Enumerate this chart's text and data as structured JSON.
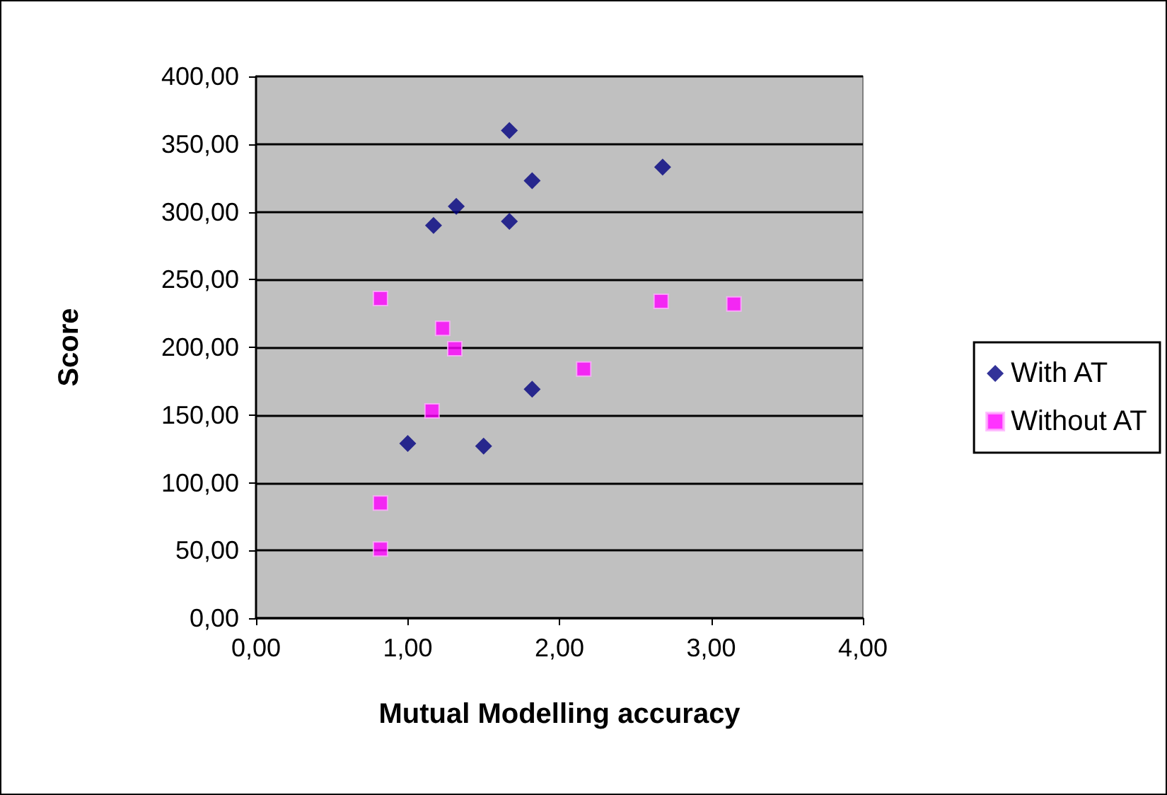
{
  "chart_data": {
    "type": "scatter",
    "xlabel": "Mutual Modelling accuracy",
    "ylabel": "Score",
    "xlim": [
      0,
      4
    ],
    "xticks": [
      {
        "value": 0,
        "label": "0,00"
      },
      {
        "value": 1,
        "label": "1,00"
      },
      {
        "value": 2,
        "label": "2,00"
      },
      {
        "value": 3,
        "label": "3,00"
      },
      {
        "value": 4,
        "label": "4,00"
      }
    ],
    "ylim": [
      0,
      400
    ],
    "yticks": [
      {
        "value": 0,
        "label": "0,00"
      },
      {
        "value": 50,
        "label": "50,00"
      },
      {
        "value": 100,
        "label": "100,00"
      },
      {
        "value": 150,
        "label": "150,00"
      },
      {
        "value": 200,
        "label": "200,00"
      },
      {
        "value": 250,
        "label": "250,00"
      },
      {
        "value": 300,
        "label": "300,00"
      },
      {
        "value": 350,
        "label": "350,00"
      },
      {
        "value": 400,
        "label": "400,00"
      }
    ],
    "grid": "y",
    "legend": "right",
    "series": [
      {
        "name": "With AT",
        "color": "#000080",
        "marker": "diamond",
        "x": [
          1.67,
          2.68,
          1.82,
          1.32,
          1.17,
          1.67,
          1.82,
          1.0,
          1.5
        ],
        "values": [
          360,
          333,
          323,
          304,
          290,
          293,
          169,
          129,
          127
        ]
      },
      {
        "name": "Without AT",
        "color": "#ff00ff",
        "marker": "square",
        "x": [
          0.82,
          1.23,
          1.31,
          2.67,
          3.15,
          2.16,
          1.16,
          0.82,
          0.82
        ],
        "values": [
          236,
          214,
          199,
          234,
          232,
          184,
          153,
          85,
          51
        ]
      }
    ]
  }
}
